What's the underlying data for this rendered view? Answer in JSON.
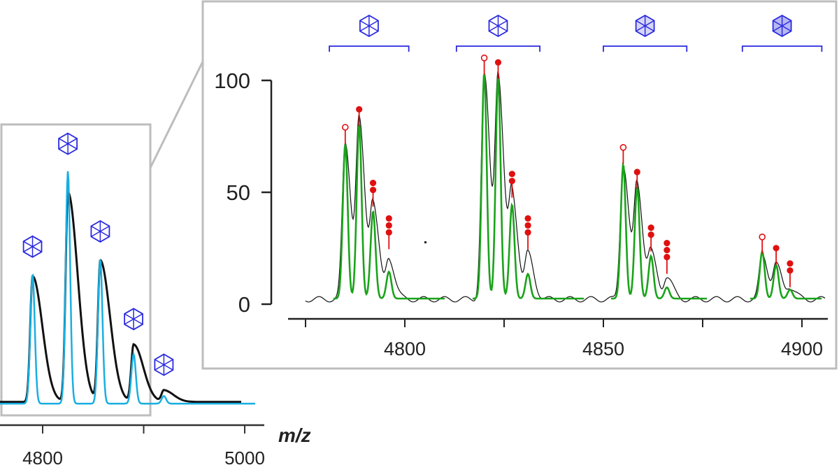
{
  "colors": {
    "overview_experimental": "#111111",
    "overview_simulated": "#1aaee0",
    "zoom_experimental": "#111111",
    "zoom_simulated": "#1aa31a",
    "frame": "#bdbdbd",
    "glycan_symbol": "#2a2ae0",
    "oxidation_marker": "#e01010"
  },
  "icons": {
    "glycan": "hexagon-glycan-icon",
    "oxidation_open": "open-circle-icon",
    "oxidation_filled": "filled-circle-icon"
  },
  "chart_data": [
    {
      "type": "line",
      "panel": "overview",
      "xlabel": "m/z",
      "x_ticks": [
        4800,
        5000
      ],
      "xlim": [
        4720,
        5010
      ],
      "y_axis_shown": false,
      "series": [
        {
          "role": "experimental",
          "peaks": [
            {
              "mz": 4790,
              "height": 33
            },
            {
              "mz": 4825,
              "height": 55
            },
            {
              "mz": 4857,
              "height": 37
            },
            {
              "mz": 4890,
              "height": 15
            },
            {
              "mz": 4920,
              "height": 3
            }
          ]
        },
        {
          "role": "simulated",
          "peaks": [
            {
              "mz": 4790,
              "height": 34
            },
            {
              "mz": 4825,
              "height": 61
            },
            {
              "mz": 4857,
              "height": 38
            },
            {
              "mz": 4890,
              "height": 13
            },
            {
              "mz": 4920,
              "height": 2
            }
          ]
        }
      ],
      "glycan_markers": [
        4790,
        4825,
        4857,
        4890,
        4920
      ]
    },
    {
      "type": "line",
      "panel": "zoom",
      "x_ticks": [
        4800,
        4850,
        4900
      ],
      "x_minor_ticks": [
        4775,
        4825,
        4875
      ],
      "xlim": [
        4774,
        4906
      ],
      "y_ticks": [
        0,
        50,
        100
      ],
      "ylim": [
        0,
        100
      ],
      "series": [
        {
          "role": "experimental",
          "peaks": [
            {
              "mz": 4785,
              "height": 70
            },
            {
              "mz": 4788.5,
              "height": 78
            },
            {
              "mz": 4792,
              "height": 42
            },
            {
              "mz": 4796,
              "height": 18
            },
            {
              "mz": 4820,
              "height": 100
            },
            {
              "mz": 4823.5,
              "height": 98
            },
            {
              "mz": 4827,
              "height": 46
            },
            {
              "mz": 4831,
              "height": 20
            },
            {
              "mz": 4855,
              "height": 60
            },
            {
              "mz": 4858.5,
              "height": 50
            },
            {
              "mz": 4862,
              "height": 20
            },
            {
              "mz": 4866,
              "height": 10
            },
            {
              "mz": 4890,
              "height": 20
            },
            {
              "mz": 4893.5,
              "height": 15
            },
            {
              "mz": 4897,
              "height": 5
            }
          ]
        },
        {
          "role": "simulated",
          "peaks": [
            {
              "mz": 4785,
              "height": 69
            },
            {
              "mz": 4788.5,
              "height": 78
            },
            {
              "mz": 4792,
              "height": 39
            },
            {
              "mz": 4796,
              "height": 12
            },
            {
              "mz": 4820,
              "height": 101
            },
            {
              "mz": 4823.5,
              "height": 99
            },
            {
              "mz": 4827,
              "height": 42
            },
            {
              "mz": 4831,
              "height": 11
            },
            {
              "mz": 4855,
              "height": 60
            },
            {
              "mz": 4858.5,
              "height": 50
            },
            {
              "mz": 4862,
              "height": 19
            },
            {
              "mz": 4866,
              "height": 5
            },
            {
              "mz": 4890,
              "height": 21
            },
            {
              "mz": 4893.5,
              "height": 15
            },
            {
              "mz": 4897,
              "height": 4
            }
          ]
        }
      ],
      "peak_markers": [
        {
          "mz": 4785,
          "top": 70,
          "marker": "open",
          "count": 1
        },
        {
          "mz": 4788.5,
          "top": 78,
          "marker": "filled",
          "count": 1
        },
        {
          "mz": 4792,
          "top": 42,
          "marker": "filled",
          "count": 2
        },
        {
          "mz": 4796,
          "top": 23,
          "marker": "filled",
          "count": 3
        },
        {
          "mz": 4820,
          "top": 101,
          "marker": "open",
          "count": 1
        },
        {
          "mz": 4823.5,
          "top": 99,
          "marker": "filled",
          "count": 1
        },
        {
          "mz": 4827,
          "top": 46,
          "marker": "filled",
          "count": 2
        },
        {
          "mz": 4831,
          "top": 23,
          "marker": "filled",
          "count": 3
        },
        {
          "mz": 4855,
          "top": 61,
          "marker": "open",
          "count": 1
        },
        {
          "mz": 4858.5,
          "top": 50,
          "marker": "filled",
          "count": 1
        },
        {
          "mz": 4862,
          "top": 22,
          "marker": "filled",
          "count": 2
        },
        {
          "mz": 4866,
          "top": 12,
          "marker": "filled",
          "count": 3
        },
        {
          "mz": 4890,
          "top": 21,
          "marker": "open",
          "count": 1
        },
        {
          "mz": 4893.5,
          "top": 16,
          "marker": "filled",
          "count": 1
        },
        {
          "mz": 4897,
          "top": 6,
          "marker": "filled",
          "count": 2
        }
      ],
      "glycan_brackets": [
        {
          "from": 4781,
          "to": 4801
        },
        {
          "from": 4813,
          "to": 4834
        },
        {
          "from": 4850,
          "to": 4871
        },
        {
          "from": 4885,
          "to": 4905
        }
      ]
    }
  ]
}
